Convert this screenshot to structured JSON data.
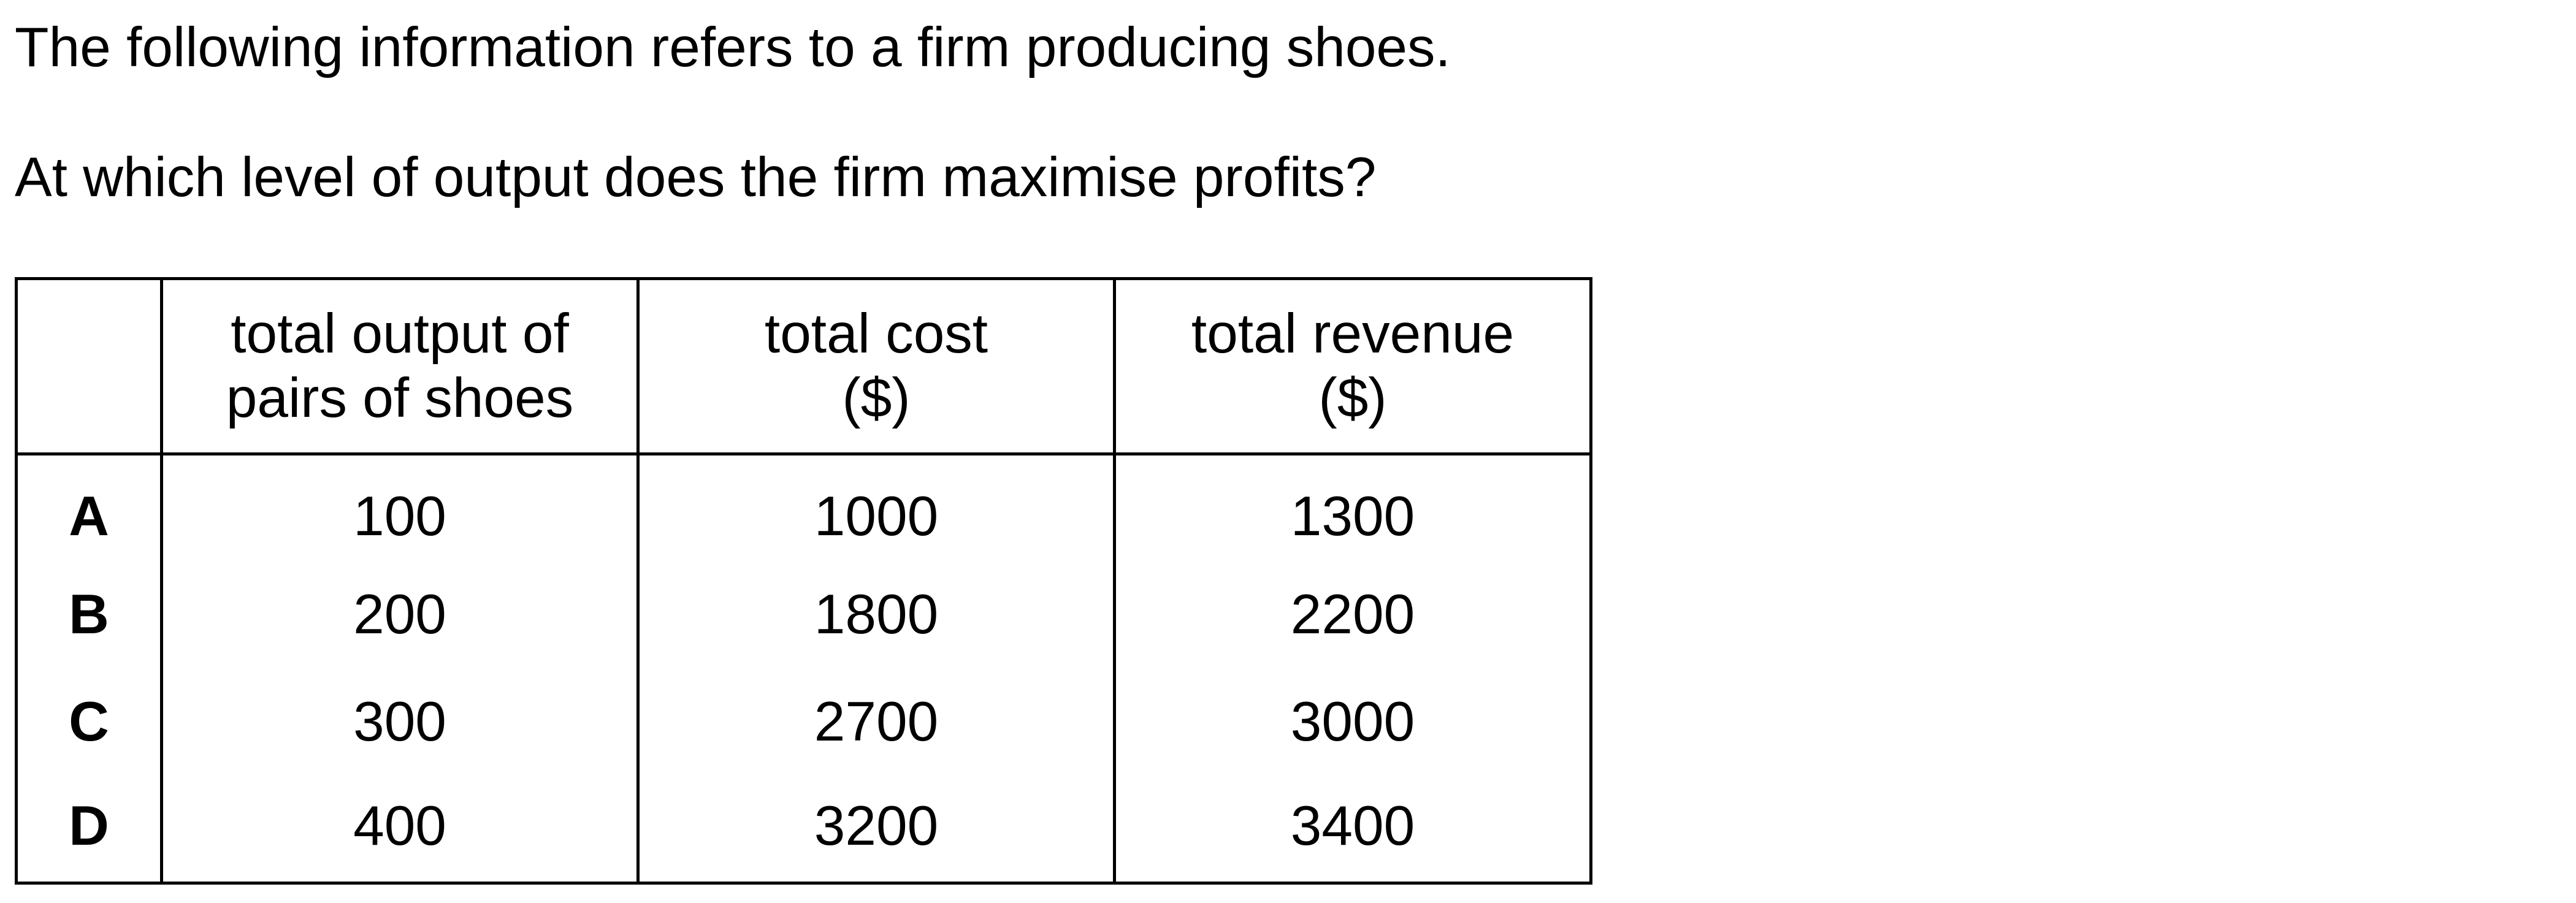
{
  "intro": "The following information refers to a firm producing shoes.",
  "question": "At which level of output does the firm maximise profits?",
  "table": {
    "headers": [
      {
        "line1": "",
        "line2": ""
      },
      {
        "line1": "total output of",
        "line2": "pairs of shoes"
      },
      {
        "line1": "total cost",
        "line2": "($)"
      },
      {
        "line1": "total revenue",
        "line2": "($)"
      }
    ],
    "rows": [
      {
        "option": "A",
        "output": "100",
        "cost": "1000",
        "revenue": "1300"
      },
      {
        "option": "B",
        "output": "200",
        "cost": "1800",
        "revenue": "2200"
      },
      {
        "option": "C",
        "output": "300",
        "cost": "2700",
        "revenue": "3000"
      },
      {
        "option": "D",
        "output": "400",
        "cost": "3200",
        "revenue": "3400"
      }
    ]
  }
}
